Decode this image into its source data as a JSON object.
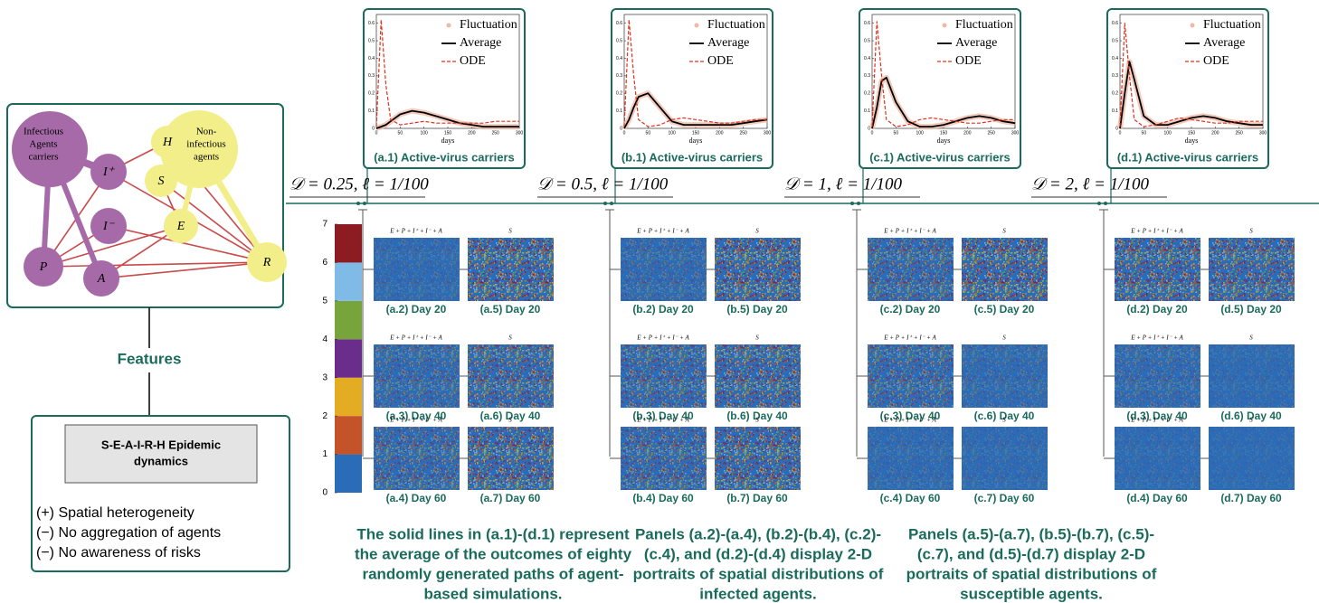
{
  "chart_data": [
    {
      "type": "line",
      "caption": "(a.1) Active-virus carriers",
      "xlabel": "days",
      "x": [
        0,
        10,
        20,
        30,
        50,
        75,
        100,
        125,
        150,
        175,
        200,
        225,
        250,
        275,
        300
      ],
      "series": [
        {
          "name": "Fluctuation",
          "color": "#efb9a6",
          "style": "band",
          "values": [
            0,
            0.01,
            0.02,
            0.04,
            0.08,
            0.1,
            0.09,
            0.07,
            0.05,
            0.03,
            0.02,
            0.01,
            0.01,
            0.01,
            0.01
          ]
        },
        {
          "name": "Average",
          "color": "#000000",
          "style": "solid",
          "values": [
            0,
            0.01,
            0.02,
            0.04,
            0.08,
            0.1,
            0.09,
            0.07,
            0.05,
            0.03,
            0.02,
            0.01,
            0.01,
            0.01,
            0.01
          ]
        },
        {
          "name": "ODE",
          "color": "#e0321e",
          "style": "dashed",
          "values": [
            0.01,
            0.62,
            0.25,
            0.05,
            0.02,
            0.03,
            0.04,
            0.03,
            0.03,
            0.03,
            0.03,
            0.03,
            0.04,
            0.04,
            0.04
          ]
        }
      ],
      "xlim": [
        0,
        300
      ],
      "ylim": [
        0,
        0.65
      ],
      "xticks": [
        0,
        50,
        100,
        150,
        200,
        250,
        300
      ],
      "yticks": [
        0,
        0.1,
        0.2,
        0.3,
        0.4,
        0.5,
        0.6
      ]
    },
    {
      "type": "line",
      "caption": "(b.1) Active-virus carriers",
      "xlabel": "days",
      "x": [
        0,
        10,
        20,
        30,
        50,
        75,
        100,
        125,
        150,
        175,
        200,
        225,
        250,
        275,
        300
      ],
      "series": [
        {
          "name": "Fluctuation",
          "color": "#efb9a6",
          "style": "band",
          "values": [
            0,
            0.05,
            0.12,
            0.18,
            0.2,
            0.12,
            0.04,
            0.02,
            0.02,
            0.02,
            0.02,
            0.02,
            0.03,
            0.04,
            0.05
          ]
        },
        {
          "name": "Average",
          "color": "#000000",
          "style": "solid",
          "values": [
            0,
            0.05,
            0.12,
            0.18,
            0.2,
            0.12,
            0.04,
            0.02,
            0.02,
            0.02,
            0.02,
            0.02,
            0.03,
            0.04,
            0.05
          ]
        },
        {
          "name": "ODE",
          "color": "#e0321e",
          "style": "dashed",
          "values": [
            0.01,
            0.62,
            0.3,
            0.05,
            0.01,
            0.02,
            0.05,
            0.06,
            0.05,
            0.04,
            0.03,
            0.03,
            0.04,
            0.05,
            0.05
          ]
        }
      ],
      "xlim": [
        0,
        300
      ],
      "ylim": [
        0,
        0.65
      ],
      "xticks": [
        0,
        50,
        100,
        150,
        200,
        250,
        300
      ],
      "yticks": [
        0,
        0.1,
        0.2,
        0.3,
        0.4,
        0.5,
        0.6
      ]
    },
    {
      "type": "line",
      "caption": "(c.1) Active-virus carriers",
      "xlabel": "days",
      "x": [
        0,
        10,
        20,
        30,
        50,
        75,
        100,
        125,
        150,
        175,
        200,
        225,
        250,
        275,
        300
      ],
      "series": [
        {
          "name": "Fluctuation",
          "color": "#efb9a6",
          "style": "band",
          "values": [
            0,
            0.12,
            0.27,
            0.29,
            0.15,
            0.04,
            0.01,
            0.01,
            0.02,
            0.04,
            0.06,
            0.07,
            0.06,
            0.04,
            0.03
          ]
        },
        {
          "name": "Average",
          "color": "#000000",
          "style": "solid",
          "values": [
            0,
            0.12,
            0.27,
            0.29,
            0.15,
            0.04,
            0.01,
            0.01,
            0.02,
            0.04,
            0.06,
            0.07,
            0.06,
            0.04,
            0.03
          ]
        },
        {
          "name": "ODE",
          "color": "#e0321e",
          "style": "dashed",
          "values": [
            0.01,
            0.61,
            0.3,
            0.05,
            0.01,
            0.02,
            0.05,
            0.06,
            0.05,
            0.04,
            0.03,
            0.03,
            0.04,
            0.05,
            0.05
          ]
        }
      ],
      "xlim": [
        0,
        300
      ],
      "ylim": [
        0,
        0.65
      ],
      "xticks": [
        0,
        50,
        100,
        150,
        200,
        250,
        300
      ],
      "yticks": [
        0,
        0.1,
        0.2,
        0.3,
        0.4,
        0.5,
        0.6
      ]
    },
    {
      "type": "line",
      "caption": "(d.1) Active-virus carriers",
      "xlabel": "days",
      "x": [
        0,
        10,
        20,
        30,
        50,
        75,
        100,
        125,
        150,
        175,
        200,
        225,
        250,
        275,
        300
      ],
      "series": [
        {
          "name": "Fluctuation",
          "color": "#efb9a6",
          "style": "band",
          "values": [
            0,
            0.2,
            0.38,
            0.28,
            0.07,
            0.02,
            0.02,
            0.04,
            0.06,
            0.07,
            0.06,
            0.04,
            0.03,
            0.02,
            0.02
          ]
        },
        {
          "name": "Average",
          "color": "#000000",
          "style": "solid",
          "values": [
            0,
            0.2,
            0.38,
            0.28,
            0.07,
            0.02,
            0.02,
            0.04,
            0.06,
            0.07,
            0.06,
            0.04,
            0.03,
            0.02,
            0.02
          ]
        },
        {
          "name": "ODE",
          "color": "#e0321e",
          "style": "dashed",
          "values": [
            0.01,
            0.6,
            0.3,
            0.05,
            0.01,
            0.02,
            0.04,
            0.06,
            0.05,
            0.04,
            0.03,
            0.03,
            0.04,
            0.04,
            0.04
          ]
        }
      ],
      "xlim": [
        0,
        300
      ],
      "ylim": [
        0,
        0.65
      ],
      "xticks": [
        0,
        50,
        100,
        150,
        200,
        250,
        300
      ],
      "yticks": [
        0,
        0.1,
        0.2,
        0.3,
        0.4,
        0.5,
        0.6
      ]
    }
  ],
  "diagram": {
    "infectious_label": [
      "Infectious",
      "Agents",
      "carriers"
    ],
    "noninfectious_label": [
      "Non-",
      "infectious",
      "agents"
    ],
    "nodes": [
      "I⁺",
      "I⁻",
      "P",
      "A",
      "H",
      "S",
      "E",
      "R"
    ]
  },
  "features": {
    "title": "Features",
    "model": [
      "S-E-A-I-R-H Epidemic",
      "dynamics"
    ],
    "items": [
      "(+) Spatial heterogeneity",
      "(−) No aggregation of agents",
      "(−) No awareness of risks"
    ]
  },
  "colorbar": {
    "ticks": [
      0,
      1,
      2,
      3,
      4,
      5,
      6,
      7
    ],
    "colors": [
      "#2a6cb8",
      "#c4532a",
      "#e3ac22",
      "#6a2d8c",
      "#78a43c",
      "#7fbbe6",
      "#8c1c22"
    ]
  },
  "columns": [
    {
      "parameter": "𝒟 = 0.25, ℓ = 1/100",
      "rows": [
        {
          "left_formula": "E + P + I⁺ + I⁻ + A",
          "right_formula": "S",
          "left_caption": "(a.2) Day 20",
          "right_caption": "(a.5) Day 20"
        },
        {
          "left_formula": "E + P + I⁺ + I⁻ + A",
          "right_formula": "S",
          "left_caption": "(a.3) Day 40",
          "right_caption": "(a.6) Day 40"
        },
        {
          "left_formula": "E + P + I⁺ + I⁻ + A",
          "right_formula": "S",
          "left_caption": "(a.4) Day 60",
          "right_caption": "(a.7) Day 60"
        }
      ]
    },
    {
      "parameter": "𝒟 = 0.5, ℓ = 1/100",
      "rows": [
        {
          "left_formula": "E + P + I⁺ + I⁻ + A",
          "right_formula": "S",
          "left_caption": "(b.2) Day 20",
          "right_caption": "(b.5) Day 20"
        },
        {
          "left_formula": "E + P + I⁺ + I⁻ + A",
          "right_formula": "S",
          "left_caption": "(b.3) Day 40",
          "right_caption": "(b.6) Day 40"
        },
        {
          "left_formula": "E + P + I⁺ + I⁻ + A",
          "right_formula": "S",
          "left_caption": "(b.4) Day 60",
          "right_caption": "(b.7) Day 60"
        }
      ]
    },
    {
      "parameter": "𝒟 = 1, ℓ = 1/100",
      "rows": [
        {
          "left_formula": "E + P + I⁺ + I⁻ + A",
          "right_formula": "S",
          "left_caption": "(c.2) Day 20",
          "right_caption": "(c.5) Day 20"
        },
        {
          "left_formula": "E + P + I⁺ + I⁻ + A",
          "right_formula": "S",
          "left_caption": "(c.3) Day 40",
          "right_caption": "(c.6) Day 40"
        },
        {
          "left_formula": "E + P + I⁺ + I⁻ + A",
          "right_formula": "S",
          "left_caption": "(c.4) Day 60",
          "right_caption": "(c.7) Day 60"
        }
      ]
    },
    {
      "parameter": "𝒟 = 2, ℓ = 1/100",
      "rows": [
        {
          "left_formula": "E + P + I⁺ + I⁻ + A",
          "right_formula": "S",
          "left_caption": "(d.2) Day 20",
          "right_caption": "(d.5) Day 20"
        },
        {
          "left_formula": "E + P + I⁺ + I⁻ + A",
          "right_formula": "S",
          "left_caption": "(d.3) Day 40",
          "right_caption": "(d.6) Day 40"
        },
        {
          "left_formula": "E + P + I⁺ + I⁻ + A",
          "right_formula": "S",
          "left_caption": "(d.4) Day 60",
          "right_caption": "(d.7) Day 60"
        }
      ]
    }
  ],
  "notes": [
    [
      "The solid lines in (a.1)-(d.1) represent",
      "the average of the outcomes of eighty",
      "randomly generated paths of agent-",
      "based simulations."
    ],
    [
      "Panels (a.2)-(a.4), (b.2)-(b.4), (c.2)-",
      "(c.4), and (d.2)-(d.4) display 2-D",
      "portraits of spatial distributions of",
      "infected agents."
    ],
    [
      "Panels (a.5)-(a.7), (b.5)-(b.7), (c.5)-",
      "(c.7), and (d.5)-(d.7) display 2-D",
      "portraits of spatial distributions of",
      "susceptible agents."
    ]
  ]
}
